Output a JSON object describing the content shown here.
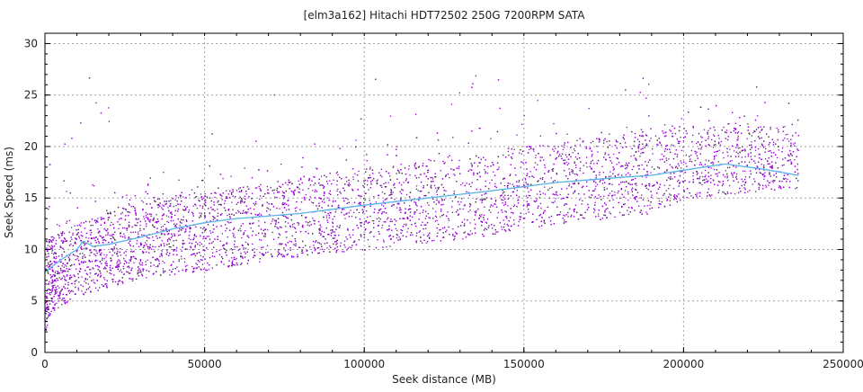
{
  "chart_data": {
    "type": "scatter",
    "title": "[elm3a162] Hitachi HDT72502 250G 7200RPM SATA",
    "xlabel": "Seek distance (MB)",
    "ylabel": "Seek Speed (ms)",
    "xlim": [
      0,
      250000
    ],
    "ylim": [
      0,
      31
    ],
    "xticks": [
      0,
      50000,
      100000,
      150000,
      200000,
      250000
    ],
    "xtick_labels": [
      "0",
      "50000",
      "100000",
      "150000",
      "200000",
      "250000"
    ],
    "yticks": [
      0,
      5,
      10,
      15,
      20,
      25,
      30
    ],
    "ytick_labels": [
      "0",
      "5",
      "10",
      "15",
      "20",
      "25",
      "30"
    ],
    "x_minor_step": 10000,
    "y_minor_step": 1,
    "grid": true,
    "legend": "none",
    "colors": {
      "points": "#9400d3",
      "points_alt": "#3a3a3a",
      "trend": "#56b4e9",
      "grid": "#a0a0a0"
    },
    "scatter_distribution": {
      "x_max": 236000,
      "lower_bound": [
        [
          0,
          2
        ],
        [
          2000,
          4
        ],
        [
          10000,
          5.5
        ],
        [
          30000,
          7.2
        ],
        [
          50000,
          8
        ],
        [
          70000,
          9
        ],
        [
          100000,
          10
        ],
        [
          130000,
          11
        ],
        [
          150000,
          12
        ],
        [
          170000,
          12.8
        ],
        [
          190000,
          13.5
        ],
        [
          200000,
          15
        ],
        [
          236000,
          16
        ]
      ],
      "upper_bound": [
        [
          0,
          11
        ],
        [
          10000,
          12.5
        ],
        [
          30000,
          15
        ],
        [
          50000,
          15.5
        ],
        [
          80000,
          17
        ],
        [
          100000,
          18
        ],
        [
          130000,
          19
        ],
        [
          150000,
          20
        ],
        [
          180000,
          21
        ],
        [
          200000,
          22
        ],
        [
          236000,
          22
        ]
      ],
      "outlier_max": 28.5
    },
    "series": [
      {
        "name": "trend",
        "type": "line",
        "points": [
          [
            0,
            7.8
          ],
          [
            5000,
            9
          ],
          [
            10000,
            10
          ],
          [
            12000,
            10.8
          ],
          [
            15000,
            10.3
          ],
          [
            20000,
            10.5
          ],
          [
            30000,
            11.2
          ],
          [
            40000,
            12
          ],
          [
            50000,
            12.6
          ],
          [
            60000,
            13
          ],
          [
            80000,
            13.5
          ],
          [
            100000,
            14.3
          ],
          [
            120000,
            15
          ],
          [
            140000,
            15.7
          ],
          [
            160000,
            16.5
          ],
          [
            180000,
            17
          ],
          [
            190000,
            17.2
          ],
          [
            200000,
            17.7
          ],
          [
            213000,
            18.3
          ],
          [
            225000,
            17.8
          ],
          [
            236000,
            17.2
          ]
        ]
      }
    ]
  }
}
